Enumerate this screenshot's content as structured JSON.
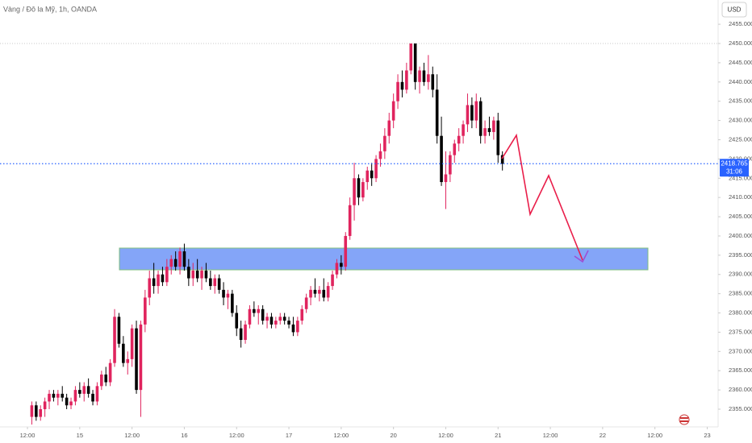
{
  "chart_data": {
    "type": "candlestick",
    "title": "Vàng / Đô la Mỹ, 1h, OANDA",
    "currency": "USD",
    "countdown": "31:06",
    "last_price": 2418.765,
    "up_color": "#e0245e",
    "down_color": "#000000",
    "last_price_color": "#2962ff",
    "grid": false,
    "xlim": [
      -6.3,
      158.5
    ],
    "ylim": [
      2350.4,
      2461.3
    ],
    "xticks": [
      {
        "value": 0,
        "label": "12:00"
      },
      {
        "value": 12,
        "label": "15"
      },
      {
        "value": 24,
        "label": "12:00"
      },
      {
        "value": 36,
        "label": "16"
      },
      {
        "value": 48,
        "label": "12:00"
      },
      {
        "value": 60,
        "label": "17"
      },
      {
        "value": 72,
        "label": "12:00"
      },
      {
        "value": 84,
        "label": "20"
      },
      {
        "value": 96,
        "label": "12:00"
      },
      {
        "value": 108,
        "label": "21"
      },
      {
        "value": 120,
        "label": "12:00"
      },
      {
        "value": 132,
        "label": "22"
      },
      {
        "value": 144,
        "label": "12:00"
      },
      {
        "value": 156,
        "label": "23"
      }
    ],
    "yticks": [
      {
        "value": 2355,
        "label": "2355.000"
      },
      {
        "value": 2360,
        "label": "2360.000"
      },
      {
        "value": 2365,
        "label": "2365.000"
      },
      {
        "value": 2370,
        "label": "2370.000"
      },
      {
        "value": 2375,
        "label": "2375.000"
      },
      {
        "value": 2380,
        "label": "2380.000"
      },
      {
        "value": 2385,
        "label": "2385.000"
      },
      {
        "value": 2390,
        "label": "2390.000"
      },
      {
        "value": 2395,
        "label": "2395.000"
      },
      {
        "value": 2400,
        "label": "2400.000"
      },
      {
        "value": 2405,
        "label": "2405.000"
      },
      {
        "value": 2410,
        "label": "2410.000"
      },
      {
        "value": 2415,
        "label": "2415.000"
      },
      {
        "value": 2420,
        "label": "2420.000"
      },
      {
        "value": 2425,
        "label": "2425.000"
      },
      {
        "value": 2430,
        "label": "2430.000"
      },
      {
        "value": 2435,
        "label": "2435.000"
      },
      {
        "value": 2440,
        "label": "2440.000"
      },
      {
        "value": 2445,
        "label": "2445.000"
      },
      {
        "value": 2450,
        "label": "2450.000"
      },
      {
        "value": 2455,
        "label": "2455.000"
      }
    ],
    "x": [
      1,
      2,
      3,
      4,
      5,
      6,
      7,
      8,
      9,
      10,
      11,
      12,
      13,
      14,
      15,
      16,
      17,
      18,
      19,
      20,
      21,
      22,
      23,
      24,
      25,
      26,
      27,
      28,
      29,
      30,
      31,
      32,
      33,
      34,
      35,
      36,
      37,
      38,
      39,
      40,
      41,
      42,
      43,
      44,
      45,
      46,
      47,
      48,
      49,
      50,
      51,
      52,
      53,
      54,
      55,
      56,
      57,
      58,
      59,
      60,
      61,
      62,
      63,
      64,
      65,
      66,
      67,
      68,
      69,
      70,
      71,
      72,
      73,
      74,
      75,
      76,
      77,
      78,
      79,
      80,
      81,
      82,
      83,
      84,
      85,
      86,
      87,
      88,
      89,
      90,
      91,
      92,
      93,
      94,
      95,
      96,
      97,
      98,
      99,
      100,
      101,
      102,
      103,
      104,
      105,
      106,
      107,
      108,
      109
    ],
    "candles": [
      [
        2353,
        2357,
        2351,
        2356
      ],
      [
        2356,
        2357,
        2352,
        2353
      ],
      [
        2353,
        2356,
        2352,
        2355
      ],
      [
        2355,
        2358,
        2353,
        2357
      ],
      [
        2357,
        2360,
        2355,
        2359
      ],
      [
        2359,
        2360,
        2357,
        2358
      ],
      [
        2358,
        2360,
        2356,
        2359
      ],
      [
        2359,
        2361,
        2357,
        2358
      ],
      [
        2358,
        2359,
        2355,
        2356
      ],
      [
        2356,
        2358,
        2355,
        2357
      ],
      [
        2357,
        2361,
        2356,
        2360
      ],
      [
        2360,
        2362,
        2358,
        2359
      ],
      [
        2359,
        2362,
        2357,
        2361
      ],
      [
        2361,
        2363,
        2358,
        2359
      ],
      [
        2359,
        2360,
        2356,
        2357
      ],
      [
        2357,
        2362,
        2356,
        2361
      ],
      [
        2361,
        2365,
        2360,
        2364
      ],
      [
        2364,
        2366,
        2361,
        2362
      ],
      [
        2362,
        2368,
        2361,
        2367
      ],
      [
        2367,
        2381,
        2366,
        2379
      ],
      [
        2379,
        2380,
        2371,
        2372
      ],
      [
        2372,
        2374,
        2366,
        2367
      ],
      [
        2367,
        2370,
        2364,
        2368
      ],
      [
        2368,
        2377,
        2366,
        2376
      ],
      [
        2376,
        2378,
        2359,
        2360
      ],
      [
        2360,
        2378,
        2353,
        2377
      ],
      [
        2377,
        2386,
        2375,
        2384
      ],
      [
        2384,
        2391,
        2382,
        2389
      ],
      [
        2389,
        2393,
        2385,
        2387
      ],
      [
        2387,
        2391,
        2385,
        2390
      ],
      [
        2390,
        2392,
        2387,
        2388
      ],
      [
        2388,
        2394,
        2387,
        2392
      ],
      [
        2392,
        2395,
        2390,
        2394
      ],
      [
        2394,
        2396,
        2391,
        2392
      ],
      [
        2392,
        2397,
        2390,
        2396
      ],
      [
        2396,
        2398,
        2391,
        2392
      ],
      [
        2392,
        2394,
        2387,
        2389
      ],
      [
        2389,
        2393,
        2387,
        2391
      ],
      [
        2391,
        2394,
        2388,
        2389
      ],
      [
        2389,
        2392,
        2386,
        2391
      ],
      [
        2391,
        2393,
        2388,
        2389
      ],
      [
        2389,
        2391,
        2386,
        2387
      ],
      [
        2387,
        2390,
        2385,
        2389
      ],
      [
        2389,
        2390,
        2385,
        2386
      ],
      [
        2386,
        2388,
        2382,
        2384
      ],
      [
        2384,
        2386,
        2381,
        2385
      ],
      [
        2385,
        2386,
        2379,
        2380
      ],
      [
        2380,
        2382,
        2374,
        2376
      ],
      [
        2376,
        2378,
        2371,
        2373
      ],
      [
        2373,
        2378,
        2372,
        2377
      ],
      [
        2377,
        2382,
        2376,
        2381
      ],
      [
        2381,
        2383,
        2379,
        2380
      ],
      [
        2380,
        2382,
        2377,
        2381
      ],
      [
        2381,
        2382,
        2377,
        2378
      ],
      [
        2378,
        2380,
        2376,
        2379
      ],
      [
        2379,
        2380,
        2376,
        2377
      ],
      [
        2377,
        2379,
        2376,
        2378
      ],
      [
        2378,
        2380,
        2377,
        2379
      ],
      [
        2379,
        2380,
        2377,
        2378
      ],
      [
        2378,
        2379,
        2376,
        2377
      ],
      [
        2377,
        2379,
        2374,
        2375
      ],
      [
        2375,
        2379,
        2374,
        2378
      ],
      [
        2378,
        2382,
        2377,
        2381
      ],
      [
        2381,
        2385,
        2380,
        2384
      ],
      [
        2384,
        2387,
        2382,
        2386
      ],
      [
        2386,
        2389,
        2384,
        2385
      ],
      [
        2385,
        2387,
        2383,
        2386
      ],
      [
        2386,
        2389,
        2383,
        2384
      ],
      [
        2384,
        2388,
        2383,
        2387
      ],
      [
        2387,
        2391,
        2386,
        2390
      ],
      [
        2390,
        2394,
        2389,
        2393
      ],
      [
        2393,
        2395,
        2390,
        2392
      ],
      [
        2392,
        2401,
        2391,
        2400
      ],
      [
        2400,
        2410,
        2399,
        2408
      ],
      [
        2408,
        2419,
        2404,
        2415
      ],
      [
        2415,
        2416,
        2408,
        2410
      ],
      [
        2410,
        2415,
        2409,
        2414
      ],
      [
        2414,
        2418,
        2412,
        2417
      ],
      [
        2417,
        2419,
        2413,
        2415
      ],
      [
        2415,
        2421,
        2414,
        2420
      ],
      [
        2420,
        2424,
        2418,
        2422
      ],
      [
        2422,
        2428,
        2420,
        2426
      ],
      [
        2426,
        2432,
        2424,
        2430
      ],
      [
        2430,
        2437,
        2428,
        2435
      ],
      [
        2435,
        2442,
        2433,
        2440
      ],
      [
        2440,
        2443,
        2436,
        2438
      ],
      [
        2438,
        2445,
        2437,
        2443
      ],
      [
        2443,
        2450,
        2442,
        2450
      ],
      [
        2450,
        2450,
        2438,
        2440
      ],
      [
        2440,
        2444,
        2437,
        2443
      ],
      [
        2443,
        2445,
        2439,
        2440
      ],
      [
        2440,
        2447,
        2438,
        2442
      ],
      [
        2442,
        2444,
        2436,
        2438
      ],
      [
        2438,
        2442,
        2424,
        2426
      ],
      [
        2426,
        2431,
        2413,
        2414
      ],
      [
        2414,
        2422,
        2407,
        2416
      ],
      [
        2416,
        2422,
        2414,
        2421
      ],
      [
        2421,
        2425,
        2419,
        2424
      ],
      [
        2424,
        2428,
        2422,
        2426
      ],
      [
        2426,
        2430,
        2424,
        2429
      ],
      [
        2429,
        2437,
        2427,
        2434
      ],
      [
        2434,
        2436,
        2428,
        2430
      ],
      [
        2430,
        2437,
        2428,
        2435
      ],
      [
        2435,
        2436,
        2424,
        2426
      ],
      [
        2426,
        2430,
        2424,
        2428
      ],
      [
        2428,
        2431,
        2426,
        2427
      ],
      [
        2427,
        2431,
        2425,
        2430
      ],
      [
        2430,
        2432,
        2419,
        2421
      ],
      [
        2421,
        2422,
        2417,
        2418.765
      ]
    ]
  }
}
